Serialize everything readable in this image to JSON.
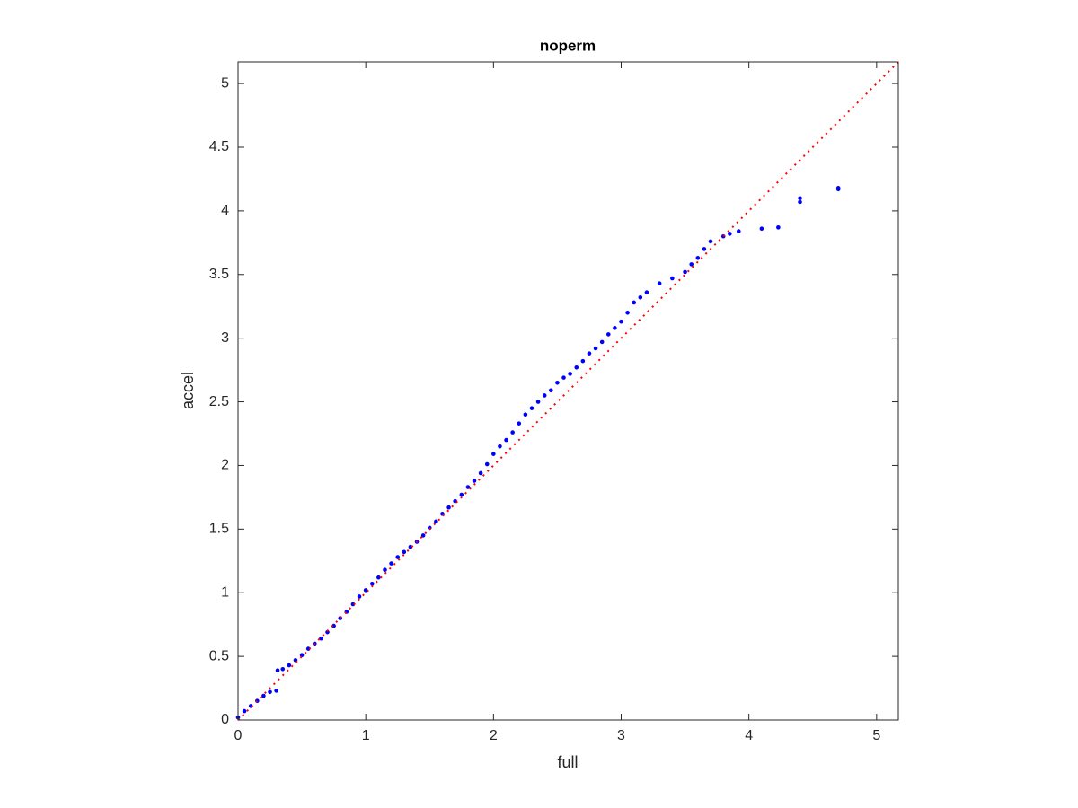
{
  "chart_data": {
    "type": "scatter",
    "title": "noperm",
    "x_label": "full",
    "y_label": "accel",
    "xlim": [
      0,
      5.17
    ],
    "ylim": [
      0,
      5.17
    ],
    "xticks": [
      0,
      1,
      2,
      3,
      4,
      5
    ],
    "yticks": [
      0,
      0.5,
      1,
      1.5,
      2,
      2.5,
      3,
      3.5,
      4,
      4.5,
      5
    ],
    "grid": false,
    "series": [
      {
        "color": "#0000ff",
        "marker": "dot",
        "x": [
          0,
          0.05,
          0.1,
          0.15,
          0.2,
          0.25,
          0.3,
          0.31,
          0.35,
          0.4,
          0.45,
          0.5,
          0.55,
          0.6,
          0.65,
          0.7,
          0.75,
          0.8,
          0.85,
          0.9,
          0.95,
          1.0,
          1.05,
          1.1,
          1.15,
          1.2,
          1.25,
          1.3,
          1.35,
          1.4,
          1.45,
          1.5,
          1.55,
          1.6,
          1.65,
          1.7,
          1.75,
          1.8,
          1.85,
          1.9,
          1.95,
          2.0,
          2.05,
          2.1,
          2.15,
          2.2,
          2.25,
          2.3,
          2.35,
          2.4,
          2.45,
          2.5,
          2.55,
          2.6,
          2.65,
          2.7,
          2.75,
          2.8,
          2.85,
          2.9,
          2.95,
          3.0,
          3.05,
          3.1,
          3.15,
          3.2,
          3.3,
          3.4,
          3.5,
          3.55,
          3.6,
          3.65,
          3.7,
          3.8,
          3.85,
          3.92,
          4.1,
          4.23,
          4.4,
          4.4,
          4.7,
          4.7
        ],
        "values": [
          0.02,
          0.07,
          0.11,
          0.15,
          0.19,
          0.22,
          0.23,
          0.39,
          0.4,
          0.43,
          0.47,
          0.51,
          0.56,
          0.6,
          0.64,
          0.69,
          0.74,
          0.8,
          0.85,
          0.91,
          0.97,
          1.02,
          1.07,
          1.12,
          1.18,
          1.23,
          1.28,
          1.32,
          1.36,
          1.4,
          1.45,
          1.51,
          1.56,
          1.62,
          1.67,
          1.72,
          1.77,
          1.83,
          1.88,
          1.94,
          2.01,
          2.09,
          2.15,
          2.2,
          2.26,
          2.33,
          2.4,
          2.45,
          2.5,
          2.55,
          2.59,
          2.65,
          2.69,
          2.72,
          2.77,
          2.82,
          2.88,
          2.92,
          2.97,
          3.03,
          3.08,
          3.13,
          3.2,
          3.28,
          3.32,
          3.36,
          3.43,
          3.47,
          3.52,
          3.58,
          3.63,
          3.7,
          3.76,
          3.8,
          3.82,
          3.84,
          3.86,
          3.87,
          4.07,
          4.1,
          4.17,
          4.18
        ]
      },
      {
        "color": "#ff0000",
        "marker": "dotted-line",
        "x": [
          0,
          5.17
        ],
        "values": [
          0,
          5.17
        ]
      }
    ]
  }
}
